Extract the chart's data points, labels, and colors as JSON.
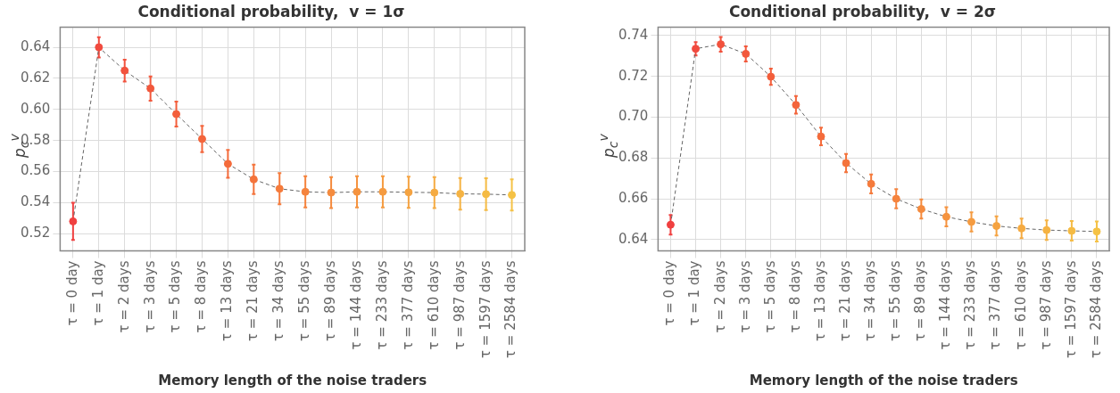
{
  "chart_data": [
    {
      "type": "line",
      "title": "Conditional probability,  v = 1σ",
      "xlabel": "Memory length of the noise traders",
      "ylabel": "p$_{c}$$^{v}$",
      "categories": [
        "τ = 0 day",
        "τ = 1 day",
        "τ = 2 days",
        "τ = 3 days",
        "τ = 5 days",
        "τ = 8 days",
        "τ = 13 days",
        "τ = 21 days",
        "τ = 34 days",
        "τ = 55 days",
        "τ = 89 days",
        "τ = 144 days",
        "τ = 233 days",
        "τ = 377 days",
        "τ = 610 days",
        "τ = 987 days",
        "τ = 1597 days",
        "τ = 2584 days"
      ],
      "series": [
        {
          "color": "#666666",
          "values": [
            0.528,
            0.64,
            0.625,
            0.6135,
            0.597,
            0.581,
            0.565,
            0.555,
            0.549,
            0.547,
            0.5465,
            0.547,
            0.547,
            0.5467,
            0.5465,
            0.5457,
            0.5455,
            0.545
          ],
          "errors": [
            0.012,
            0.0065,
            0.007,
            0.0078,
            0.008,
            0.0085,
            0.009,
            0.0095,
            0.01,
            0.01,
            0.01,
            0.01,
            0.01,
            0.01,
            0.01,
            0.0102,
            0.0102,
            0.01
          ],
          "colors": [
            "#f04040",
            "#f14a3e",
            "#f2523d",
            "#f2583c",
            "#f35e3b",
            "#f3643b",
            "#f46b3b",
            "#f4733b",
            "#f57b3c",
            "#f5833d",
            "#f58b3e",
            "#f5933f",
            "#f59b40",
            "#f5a341",
            "#f5ab42",
            "#f5b343",
            "#f5bb44",
            "#f5c245"
          ]
        }
      ],
      "ylim": [
        0.509,
        0.653
      ],
      "yticks": [
        0.52,
        0.54,
        0.56,
        0.58,
        {
          "value": 0.6,
          "label": "0.60"
        },
        0.62,
        0.64
      ],
      "grid": true,
      "marker": "circle",
      "line_style": "dashed"
    },
    {
      "type": "line",
      "title": "Conditional probability,  v = 2σ",
      "xlabel": "Memory length of the noise traders",
      "ylabel": "p$_{c}$$^{v}$",
      "categories": [
        "τ = 0 day",
        "τ = 1 day",
        "τ = 2 days",
        "τ = 3 days",
        "τ = 5 days",
        "τ = 8 days",
        "τ = 13 days",
        "τ = 21 days",
        "τ = 34 days",
        "τ = 55 days",
        "τ = 89 days",
        "τ = 144 days",
        "τ = 233 days",
        "τ = 377 days",
        "τ = 610 days",
        "τ = 987 days",
        "τ = 1597 days",
        "τ = 2584 days"
      ],
      "series": [
        {
          "color": "#666666",
          "values": [
            0.6473,
            0.7335,
            0.7357,
            0.731,
            0.7198,
            0.706,
            0.6905,
            0.6775,
            0.6673,
            0.66,
            0.655,
            0.6512,
            0.6487,
            0.6467,
            0.6455,
            0.6447,
            0.6443,
            0.644
          ],
          "errors": [
            0.0048,
            0.0033,
            0.0036,
            0.0037,
            0.004,
            0.0043,
            0.0043,
            0.0045,
            0.0046,
            0.0047,
            0.0047,
            0.0047,
            0.0047,
            0.0047,
            0.0048,
            0.0048,
            0.0048,
            0.0049
          ],
          "colors": [
            "#f04040",
            "#f14a3e",
            "#f2523d",
            "#f2583c",
            "#f35e3b",
            "#f3643b",
            "#f46b3b",
            "#f4733b",
            "#f57b3c",
            "#f5833d",
            "#f58b3e",
            "#f5933f",
            "#f59b40",
            "#f5a341",
            "#f5ab42",
            "#f5b343",
            "#f5bb44",
            "#f5c245"
          ]
        }
      ],
      "ylim": [
        0.6345,
        0.7441
      ],
      "yticks": [
        0.64,
        0.66,
        0.68,
        {
          "value": 0.7,
          "label": "0.70"
        },
        0.72,
        0.74
      ],
      "grid": true,
      "marker": "circle",
      "line_style": "dashed"
    }
  ]
}
